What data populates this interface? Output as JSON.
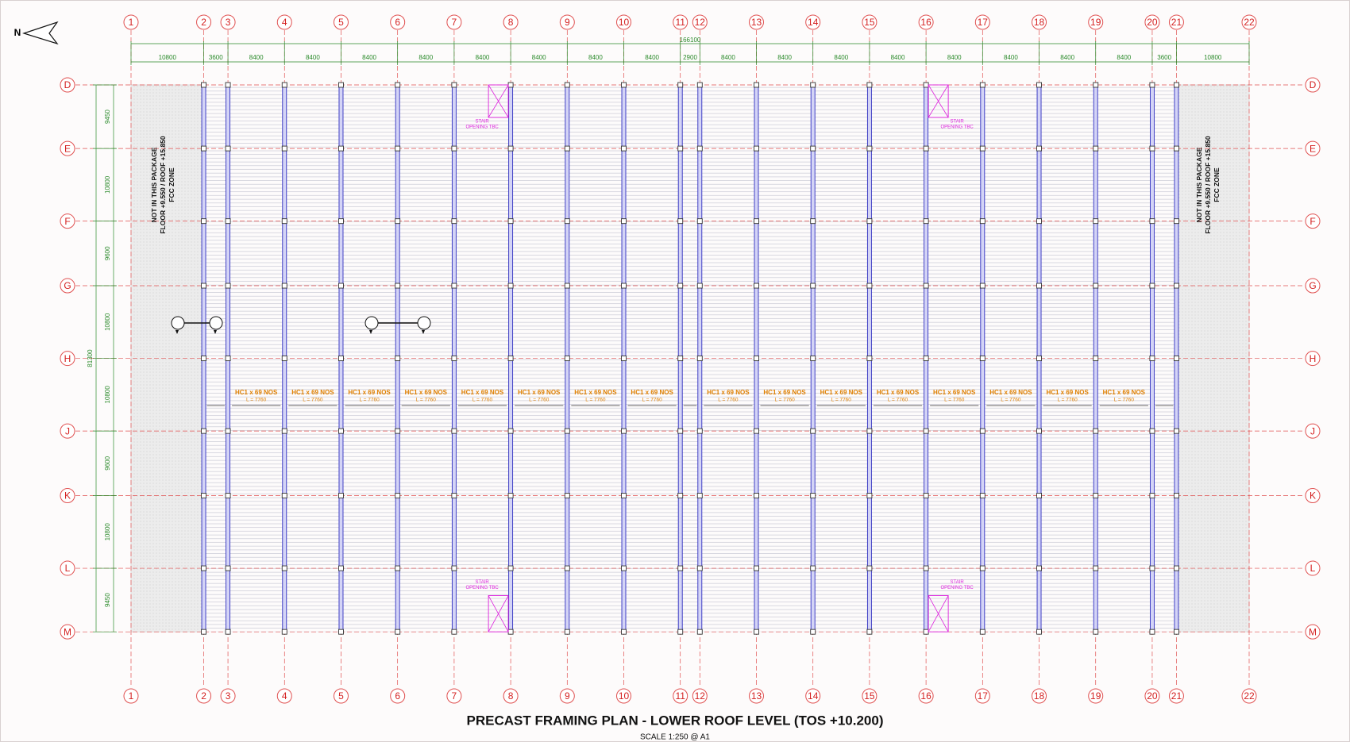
{
  "header": {
    "north": "N",
    "title": "PRECAST FRAMING PLAN - LOWER ROOF LEVEL (TOS +10.200)",
    "scale": "SCALE 1:250 @ A1"
  },
  "grid": {
    "columns": [
      "1",
      "2",
      "3",
      "4",
      "5",
      "6",
      "7",
      "8",
      "9",
      "10",
      "11",
      "12",
      "13",
      "14",
      "15",
      "16",
      "17",
      "18",
      "19",
      "20",
      "21",
      "22"
    ],
    "rows": [
      "D",
      "E",
      "F",
      "G",
      "H",
      "J",
      "K",
      "L",
      "M"
    ],
    "column_spacings": [
      10800,
      3600,
      8400,
      8400,
      8400,
      8400,
      8400,
      8400,
      8400,
      8400,
      2900,
      8400,
      8400,
      8400,
      8400,
      8400,
      8400,
      8400,
      8400,
      3600,
      10800
    ],
    "row_spacings": [
      9450,
      10800,
      9600,
      10800,
      10800,
      9600,
      10800,
      9450
    ],
    "overall_length": 166100,
    "overall_width": 81300
  },
  "zone_notes": [
    {
      "lines": [
        "NOT IN THIS PACKAGE",
        "FLOOR +9.550 / ROOF +15.850",
        "FCC ZONE"
      ]
    },
    {
      "lines": [
        "NOT IN THIS PACKAGE",
        "FLOOR +9.550 / ROOF +15.850",
        "FCC ZONE"
      ]
    }
  ],
  "slabs": [
    {
      "label": "HC1 x 69 NOS",
      "length": "L = 7760"
    },
    {
      "label": "HC1 x 69 NOS",
      "length": "L = 7760"
    },
    {
      "label": "HC1 x 69 NOS",
      "length": "L = 7760"
    },
    {
      "label": "HC1 x 69 NOS",
      "length": "L = 7760"
    },
    {
      "label": "HC1 x 69 NOS",
      "length": "L = 7760"
    },
    {
      "label": "HC1 x 69 NOS",
      "length": "L = 7760"
    },
    {
      "label": "HC1 x 69 NOS",
      "length": "L = 7760"
    },
    {
      "label": "HC1 x 69 NOS",
      "length": "L = 7760"
    },
    {
      "label": "HC1 x 69 NOS",
      "length": "L = 7760"
    },
    {
      "label": "HC1 x 69 NOS",
      "length": "L = 7760"
    },
    {
      "label": "HC1 x 69 NOS",
      "length": "L = 7760"
    },
    {
      "label": "HC1 x 69 NOS",
      "length": "L = 7760"
    },
    {
      "label": "HC1 x 69 NOS",
      "length": "L = 7760"
    },
    {
      "label": "HC1 x 69 NOS",
      "length": "L = 7760"
    },
    {
      "label": "HC1 x 69 NOS",
      "length": "L = 7760"
    },
    {
      "label": "HC1 x 69 NOS",
      "length": "L = 7760"
    }
  ],
  "stair_openings": [
    {
      "lines": [
        "STAIR",
        "OPENING TBC"
      ]
    },
    {
      "lines": [
        "STAIR",
        "OPENING TBC"
      ]
    },
    {
      "lines": [
        "STAIR",
        "OPENING TBC"
      ]
    },
    {
      "lines": [
        "STAIR",
        "OPENING TBC"
      ]
    }
  ]
}
